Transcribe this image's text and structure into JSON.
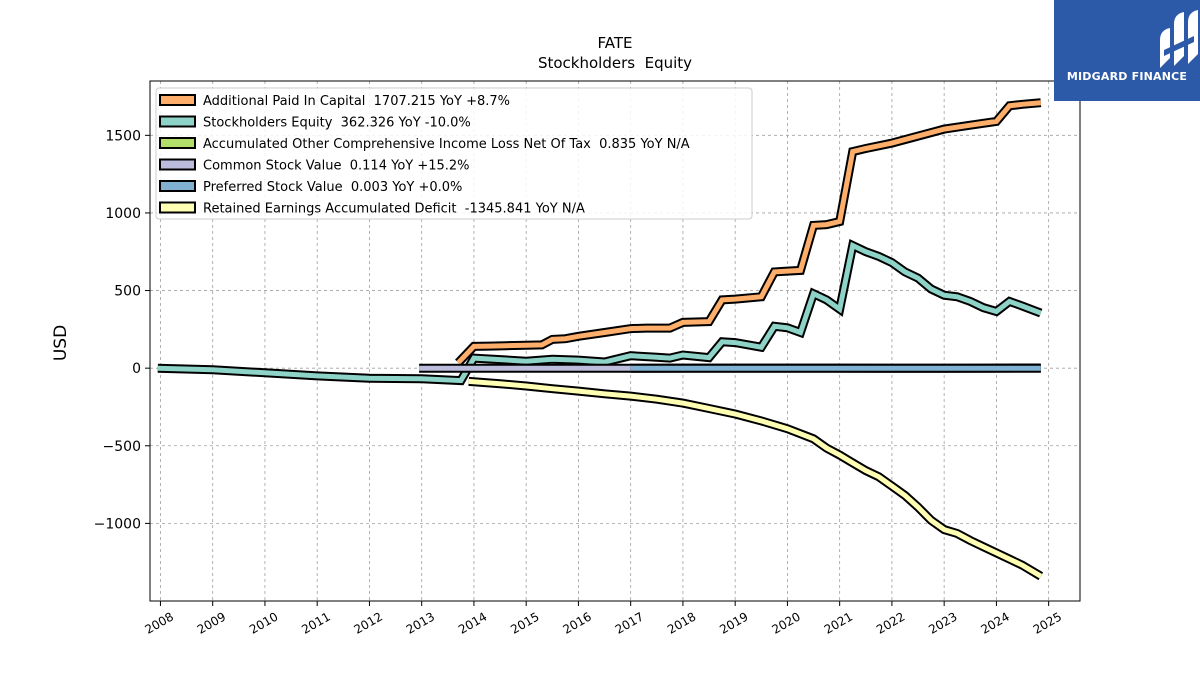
{
  "chart_data": {
    "type": "line",
    "title": "FATE",
    "subtitle": "Stockholders  Equity",
    "xlabel": "",
    "ylabel": "USD",
    "xlim": [
      2007.8,
      2025.6
    ],
    "ylim": [
      -1500,
      1850
    ],
    "yticks": [
      -1000,
      -500,
      0,
      500,
      1000,
      1500
    ],
    "ytick_labels": [
      "−1000",
      "−500",
      "0",
      "500",
      "1000",
      "1500"
    ],
    "xticks": [
      2008,
      2009,
      2010,
      2011,
      2012,
      2013,
      2014,
      2015,
      2016,
      2017,
      2018,
      2019,
      2020,
      2021,
      2022,
      2023,
      2024,
      2025
    ],
    "xtick_labels": [
      "2008",
      "2009",
      "2010",
      "2011",
      "2012",
      "2013",
      "2014",
      "2015",
      "2016",
      "2017",
      "2018",
      "2019",
      "2020",
      "2021",
      "2022",
      "2023",
      "2024",
      "2025"
    ],
    "grid": true,
    "legend_position": "top-left",
    "series": [
      {
        "name": "Additional Paid In Capital",
        "legend": "Additional Paid In Capital  1707.215 YoY +8.7%",
        "color": "#fdae6b",
        "x": [
          2013.7,
          2014.0,
          2014.3,
          2014.6,
          2015.0,
          2015.3,
          2015.5,
          2015.75,
          2016.0,
          2016.5,
          2017.0,
          2017.3,
          2017.75,
          2018.0,
          2018.5,
          2018.75,
          2019.0,
          2019.5,
          2019.75,
          2020.0,
          2020.25,
          2020.5,
          2020.75,
          2021.0,
          2021.25,
          2021.5,
          2022.0,
          2022.5,
          2023.0,
          2023.5,
          2024.0,
          2024.25,
          2024.5,
          2024.85
        ],
        "y": [
          35,
          140,
          142,
          145,
          148,
          150,
          185,
          190,
          205,
          230,
          255,
          258,
          258,
          295,
          300,
          440,
          445,
          460,
          620,
          625,
          630,
          920,
          925,
          945,
          1395,
          1415,
          1450,
          1495,
          1540,
          1565,
          1590,
          1690,
          1700,
          1710
        ]
      },
      {
        "name": "Stockholders Equity",
        "legend": "Stockholders Equity  362.326 YoY -10.0%",
        "color": "#8dd3c7",
        "x": [
          2007.95,
          2009.0,
          2010.0,
          2011.0,
          2012.0,
          2013.0,
          2013.75,
          2014.0,
          2014.5,
          2015.0,
          2015.5,
          2016.0,
          2016.5,
          2017.0,
          2017.5,
          2017.75,
          2018.0,
          2018.5,
          2018.75,
          2019.0,
          2019.5,
          2019.75,
          2020.0,
          2020.25,
          2020.5,
          2020.75,
          2021.0,
          2021.25,
          2021.5,
          2021.75,
          2022.0,
          2022.25,
          2022.5,
          2022.75,
          2023.0,
          2023.25,
          2023.5,
          2023.75,
          2024.0,
          2024.25,
          2024.5,
          2024.85
        ],
        "y": [
          0,
          -10,
          -30,
          -50,
          -65,
          -68,
          -80,
          65,
          55,
          45,
          58,
          52,
          40,
          80,
          70,
          65,
          85,
          68,
          170,
          165,
          135,
          270,
          260,
          230,
          480,
          440,
          380,
          790,
          750,
          720,
          680,
          620,
          580,
          510,
          470,
          460,
          430,
          390,
          365,
          430,
          400,
          355
        ]
      },
      {
        "name": "Accumulated Other Comprehensive Income Loss Net Of Tax",
        "legend": "Accumulated Other Comprehensive Income Loss Net Of Tax  0.835 YoY N/A",
        "color": "#b3de69",
        "x": [
          2017.0,
          2018.0,
          2019.0,
          2020.0,
          2021.0,
          2022.0,
          2023.0,
          2024.0,
          2024.85
        ],
        "y": [
          0,
          0.2,
          0.5,
          0.3,
          0.1,
          -0.5,
          -0.2,
          0.4,
          0.835
        ]
      },
      {
        "name": "Common Stock Value",
        "legend": "Common Stock Value  0.114 YoY +15.2%",
        "color": "#bcbddc",
        "x": [
          2012.95,
          2017.0
        ],
        "y": [
          0.02,
          0.05
        ]
      },
      {
        "name": "Preferred Stock Value",
        "legend": "Preferred Stock Value  0.003 YoY +0.0%",
        "color": "#80b1d3",
        "x": [
          2017.0,
          2024.85
        ],
        "y": [
          0.003,
          0.003
        ]
      },
      {
        "name": "Retained Earnings Accumulated Deficit",
        "legend": "Retained Earnings Accumulated Deficit  -1345.841 YoY N/A",
        "color": "#ffffb3",
        "x": [
          2013.9,
          2014.5,
          2015.0,
          2015.5,
          2016.0,
          2016.5,
          2017.0,
          2017.5,
          2018.0,
          2018.5,
          2019.0,
          2019.5,
          2020.0,
          2020.5,
          2020.75,
          2021.0,
          2021.25,
          2021.5,
          2021.75,
          2022.0,
          2022.25,
          2022.5,
          2022.75,
          2023.0,
          2023.25,
          2023.5,
          2023.75,
          2024.0,
          2024.25,
          2024.5,
          2024.85
        ],
        "y": [
          -85,
          -100,
          -115,
          -132,
          -148,
          -165,
          -180,
          -200,
          -225,
          -260,
          -295,
          -340,
          -390,
          -455,
          -515,
          -560,
          -610,
          -660,
          -700,
          -760,
          -820,
          -895,
          -980,
          -1040,
          -1065,
          -1110,
          -1150,
          -1190,
          -1230,
          -1270,
          -1340
        ]
      }
    ]
  },
  "branding": {
    "logo_text": "MIDGARD FINANCE",
    "logo_color": "#2c5aa8"
  }
}
